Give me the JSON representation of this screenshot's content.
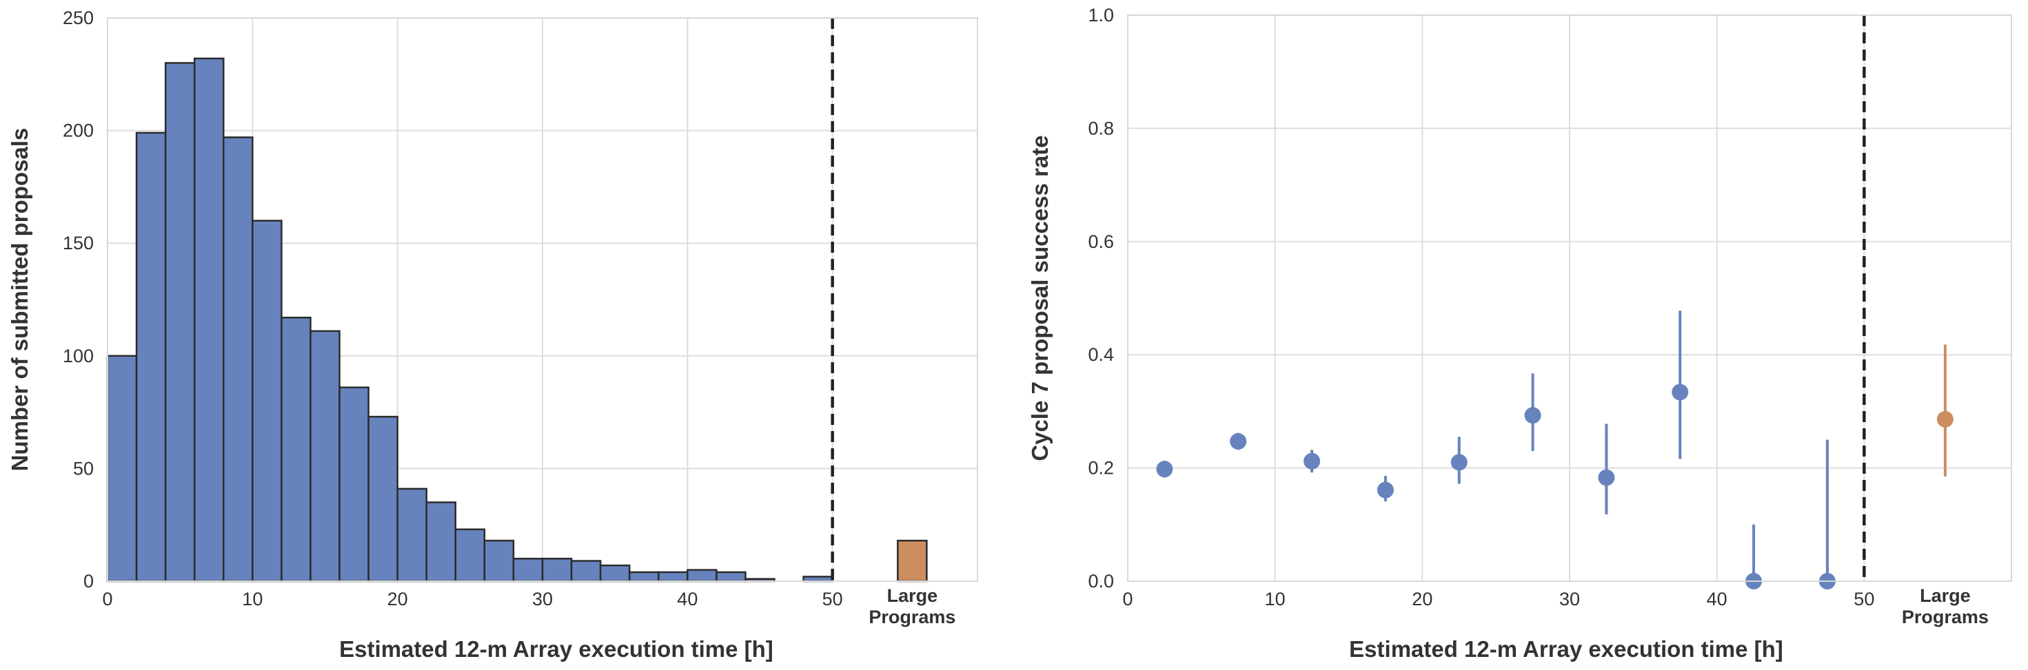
{
  "colors": {
    "blue": "#6783BD",
    "orange": "#CC8D5F",
    "grid": "#DDDDDD",
    "edge": "#2B2B2B",
    "frame": "#D9D9D9",
    "text": "#333333",
    "dashed": "#222222"
  },
  "chart_data": [
    {
      "type": "bar",
      "subtype": "histogram",
      "ylabel": "Number of submitted proposals",
      "xlabel": "Estimated 12-m Array execution time  [h]",
      "xlim": [
        0,
        60
      ],
      "ylim": [
        0,
        250
      ],
      "grid": true,
      "x_ticks": [
        0,
        10,
        20,
        30,
        40,
        50
      ],
      "x_tick_labels": [
        "0",
        "10",
        "20",
        "30",
        "40",
        "50"
      ],
      "y_ticks": [
        0,
        50,
        100,
        150,
        200,
        250
      ],
      "y_tick_labels": [
        "0",
        "50",
        "100",
        "150",
        "200",
        "250"
      ],
      "bin_width": 2,
      "bin_starts": [
        0,
        2,
        4,
        6,
        8,
        10,
        12,
        14,
        16,
        18,
        20,
        22,
        24,
        26,
        28,
        30,
        32,
        34,
        36,
        38,
        40,
        42,
        44,
        46,
        48
      ],
      "values": [
        100,
        199,
        230,
        232,
        197,
        160,
        117,
        111,
        86,
        73,
        41,
        35,
        23,
        18,
        10,
        10,
        9,
        7,
        4,
        4,
        5,
        4,
        1,
        0,
        2
      ],
      "reference_line_x": 50,
      "extra_category": {
        "label_line1": "Large",
        "label_line2": "Programs",
        "x": 55.5,
        "value": 18
      }
    },
    {
      "type": "scatter",
      "subtype": "errorbar",
      "ylabel": "Cycle 7 proposal success rate",
      "xlabel": "Estimated 12-m Array execution time  [h]",
      "xlim": [
        0,
        60
      ],
      "ylim": [
        0,
        1.0
      ],
      "grid": true,
      "x_ticks": [
        0,
        10,
        20,
        30,
        40,
        50
      ],
      "x_tick_labels": [
        "0",
        "10",
        "20",
        "30",
        "40",
        "50"
      ],
      "y_ticks": [
        0,
        0.2,
        0.4,
        0.6,
        0.8,
        1.0
      ],
      "y_tick_labels": [
        "0.0",
        "0.2",
        "0.4",
        "0.6",
        "0.8",
        "1.0"
      ],
      "points": [
        {
          "x": 2.5,
          "y": 0.198,
          "low": 0.183,
          "high": 0.213
        },
        {
          "x": 7.5,
          "y": 0.247,
          "low": 0.232,
          "high": 0.262
        },
        {
          "x": 12.5,
          "y": 0.212,
          "low": 0.192,
          "high": 0.232
        },
        {
          "x": 17.5,
          "y": 0.161,
          "low": 0.141,
          "high": 0.186
        },
        {
          "x": 22.5,
          "y": 0.21,
          "low": 0.172,
          "high": 0.255
        },
        {
          "x": 27.5,
          "y": 0.293,
          "low": 0.23,
          "high": 0.367
        },
        {
          "x": 32.5,
          "y": 0.183,
          "low": 0.118,
          "high": 0.278
        },
        {
          "x": 37.5,
          "y": 0.334,
          "low": 0.216,
          "high": 0.478
        },
        {
          "x": 42.5,
          "y": 0.0,
          "low": 0.0,
          "high": 0.1
        },
        {
          "x": 47.5,
          "y": 0.0,
          "low": 0.0,
          "high": 0.25
        }
      ],
      "reference_line_x": 50,
      "extra_point": {
        "label_line1": "Large",
        "label_line2": "Programs",
        "x": 55.5,
        "y": 0.286,
        "low": 0.185,
        "high": 0.418
      }
    }
  ]
}
